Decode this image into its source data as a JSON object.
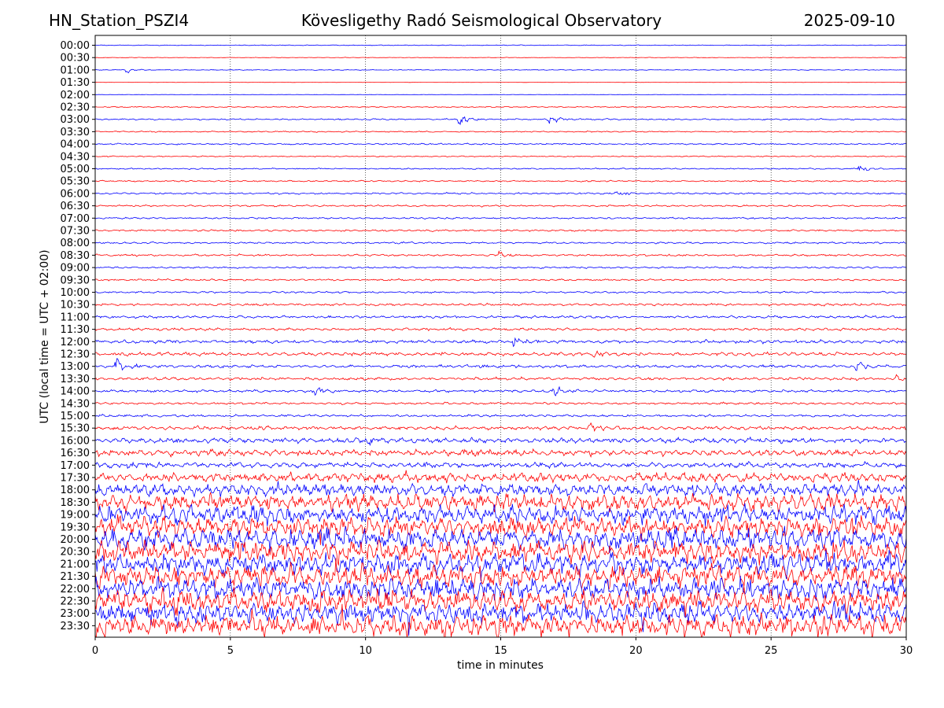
{
  "header": {
    "station": "HN_Station_PSZI4",
    "observatory": "Kövesligethy Radó Seismological Observatory",
    "date": "2025-09-10"
  },
  "chart_data": {
    "type": "line",
    "chart_kind": "helicorder (seismogram drum plot)",
    "xlabel": "time in minutes",
    "ylabel": "UTC (local time = UTC + 02:00)",
    "xlim": [
      0,
      30
    ],
    "x_ticks": [
      0,
      5,
      10,
      15,
      20,
      25,
      30
    ],
    "grid": "vertical dotted lines at each x tick",
    "trace_colors": [
      "#0000ff",
      "#ff0000"
    ],
    "rows": [
      "00:00",
      "00:30",
      "01:00",
      "01:30",
      "02:00",
      "02:30",
      "03:00",
      "03:30",
      "04:00",
      "04:30",
      "05:00",
      "05:30",
      "06:00",
      "06:30",
      "07:00",
      "07:30",
      "08:00",
      "08:30",
      "09:00",
      "09:30",
      "10:00",
      "10:30",
      "11:00",
      "11:30",
      "12:00",
      "12:30",
      "13:00",
      "13:30",
      "14:00",
      "14:30",
      "15:00",
      "15:30",
      "16:00",
      "16:30",
      "17:00",
      "17:30",
      "18:00",
      "18:30",
      "19:00",
      "19:30",
      "20:00",
      "20:30",
      "21:00",
      "21:30",
      "22:00",
      "22:30",
      "23:00",
      "23:30"
    ],
    "row_amplitude": [
      0.4,
      0.3,
      0.4,
      0.2,
      0.2,
      0.6,
      0.8,
      0.7,
      0.8,
      0.6,
      0.7,
      0.8,
      1.0,
      1.0,
      0.9,
      1.0,
      1.0,
      1.1,
      1.0,
      1.0,
      1.0,
      1.3,
      1.4,
      1.5,
      1.8,
      1.9,
      1.7,
      1.6,
      1.4,
      1.2,
      1.3,
      2.0,
      3.0,
      3.5,
      3.0,
      5.0,
      7.0,
      9.0,
      10.0,
      11.0,
      12.0,
      12.0,
      12.0,
      12.0,
      12.0,
      12.0,
      12.0,
      12.0
    ],
    "events": [
      {
        "row": "01:00",
        "minute": 1.2,
        "strength": 3
      },
      {
        "row": "03:00",
        "minute": 13.5,
        "strength": 8
      },
      {
        "row": "03:00",
        "minute": 16.8,
        "strength": 6
      },
      {
        "row": "05:00",
        "minute": 28.3,
        "strength": 5
      },
      {
        "row": "06:00",
        "minute": 19.3,
        "strength": 4
      },
      {
        "row": "08:30",
        "minute": 15.0,
        "strength": 4
      },
      {
        "row": "12:00",
        "minute": 15.5,
        "strength": 4
      },
      {
        "row": "12:30",
        "minute": 18.5,
        "strength": 4
      },
      {
        "row": "13:00",
        "minute": 0.8,
        "strength": 8
      },
      {
        "row": "13:00",
        "minute": 28.2,
        "strength": 5
      },
      {
        "row": "13:30",
        "minute": 29.6,
        "strength": 5
      },
      {
        "row": "14:00",
        "minute": 8.2,
        "strength": 5
      },
      {
        "row": "14:00",
        "minute": 17.0,
        "strength": 7
      },
      {
        "row": "15:30",
        "minute": 18.3,
        "strength": 5
      },
      {
        "row": "16:00",
        "minute": 10.0,
        "strength": 6
      }
    ]
  }
}
